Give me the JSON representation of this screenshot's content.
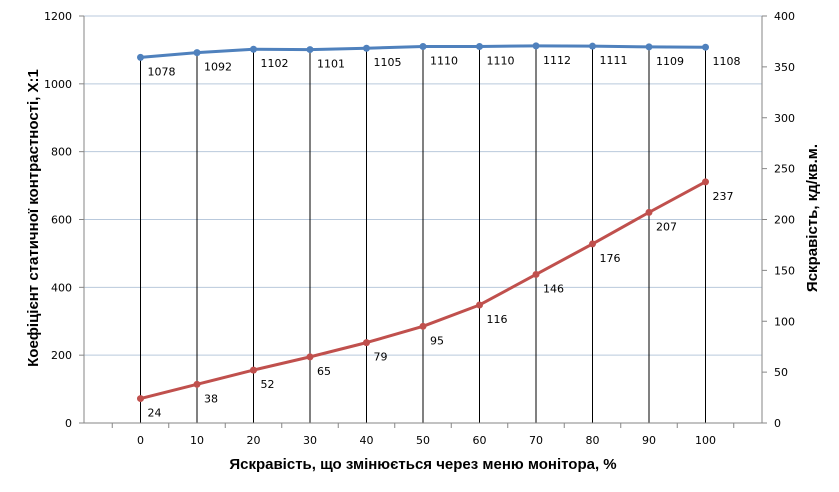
{
  "chart_data": {
    "type": "line",
    "title": "",
    "xlabel": "Яскравість, що змінюється через меню монітора, %",
    "ylabel": "Коефіцієнт статичної контрастності, Х:1",
    "y2label": "Яскравість, кд/кв.м.",
    "x": [
      0,
      10,
      20,
      30,
      40,
      50,
      60,
      70,
      80,
      90,
      100
    ],
    "xlim": [
      -10,
      110
    ],
    "x_ticks": [
      "0",
      "10",
      "20",
      "30",
      "40",
      "50",
      "60",
      "70",
      "80",
      "90",
      "100"
    ],
    "ylim": [
      0,
      1200
    ],
    "y_ticks": [
      "0",
      "200",
      "400",
      "600",
      "800",
      "1000",
      "1200"
    ],
    "y2lim": [
      0,
      400
    ],
    "y2_ticks": [
      "0",
      "50",
      "100",
      "150",
      "200",
      "250",
      "300",
      "350",
      "400"
    ],
    "grid": "horizontal",
    "legend": "none",
    "series": [
      {
        "axis": "left",
        "color": "#4f81bd",
        "values": [
          1078,
          1092,
          1102,
          1101,
          1105,
          1110,
          1110,
          1112,
          1111,
          1109,
          1108
        ],
        "labels": [
          "1078",
          "1092",
          "1102",
          "1101",
          "1105",
          "1110",
          "1110",
          "1112",
          "1111",
          "1109",
          "1108"
        ]
      },
      {
        "axis": "right",
        "color": "#c0504d",
        "values": [
          24,
          38,
          52,
          65,
          79,
          95,
          116,
          146,
          176,
          207,
          237
        ],
        "labels": [
          "24",
          "38",
          "52",
          "65",
          "79",
          "95",
          "116",
          "146",
          "176",
          "207",
          "237"
        ]
      }
    ],
    "drop_lines_color": "#000000",
    "grid_color": "#b9c9dc",
    "axis_color": "#868686"
  }
}
